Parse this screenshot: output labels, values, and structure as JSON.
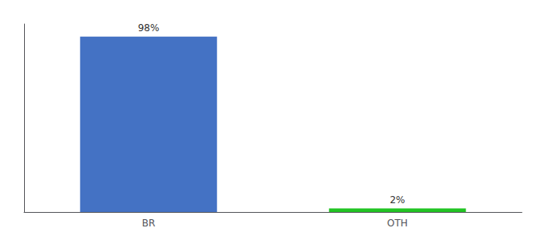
{
  "chart_data": {
    "type": "bar",
    "categories": [
      "BR",
      "OTH"
    ],
    "values": [
      98,
      2
    ],
    "value_labels": [
      "98%",
      "2%"
    ],
    "data_labels": true,
    "colors": [
      "#4472C4",
      "#22C424"
    ],
    "ylim": [
      0,
      105
    ],
    "grid": false,
    "tick_labels": "x"
  }
}
